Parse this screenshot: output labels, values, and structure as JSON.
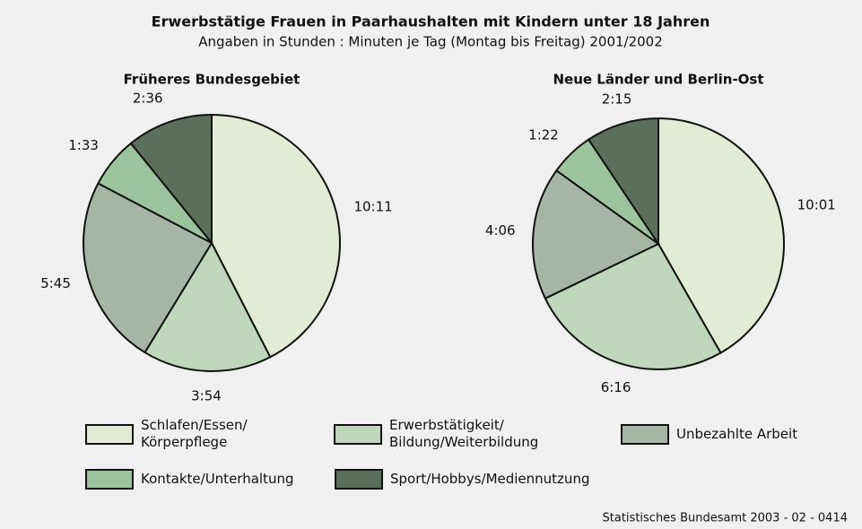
{
  "title": "Erwerbstätige Frauen in Paarhaushalten mit Kindern unter 18 Jahren",
  "subtitle": "Angaben in Stunden : Minuten je Tag (Montag bis Freitag) 2001/2002",
  "source": "Statistisches Bundesamt 2003 - 02 - 0414",
  "legend": [
    {
      "label": "Schlafen/Essen/\nKörperpflege",
      "color": "#e2ecd4"
    },
    {
      "label": "Erwerbstätigkeit/\nBildung/Weiterbildung",
      "color": "#bfd8bc"
    },
    {
      "label": "Unbezahlte Arbeit",
      "color": "#a7b5a6"
    },
    {
      "label": "Kontakte/Unterhaltung",
      "color": "#9cc49c"
    },
    {
      "label": "Sport/Hobbys/Mediennutzung",
      "color": "#5c6e5c"
    }
  ],
  "chart_data": [
    {
      "type": "pie",
      "title": "Früheres Bundesgebiet",
      "values": [
        611,
        234,
        345,
        93,
        156
      ],
      "value_labels": [
        "10:11",
        "3:54",
        "5:45",
        "1:33",
        "2:36"
      ]
    },
    {
      "type": "pie",
      "title": "Neue Länder und Berlin-Ost",
      "values": [
        601,
        376,
        246,
        82,
        135
      ],
      "value_labels": [
        "10:01",
        "6:16",
        "4:06",
        "1:22",
        "2:15"
      ]
    }
  ]
}
